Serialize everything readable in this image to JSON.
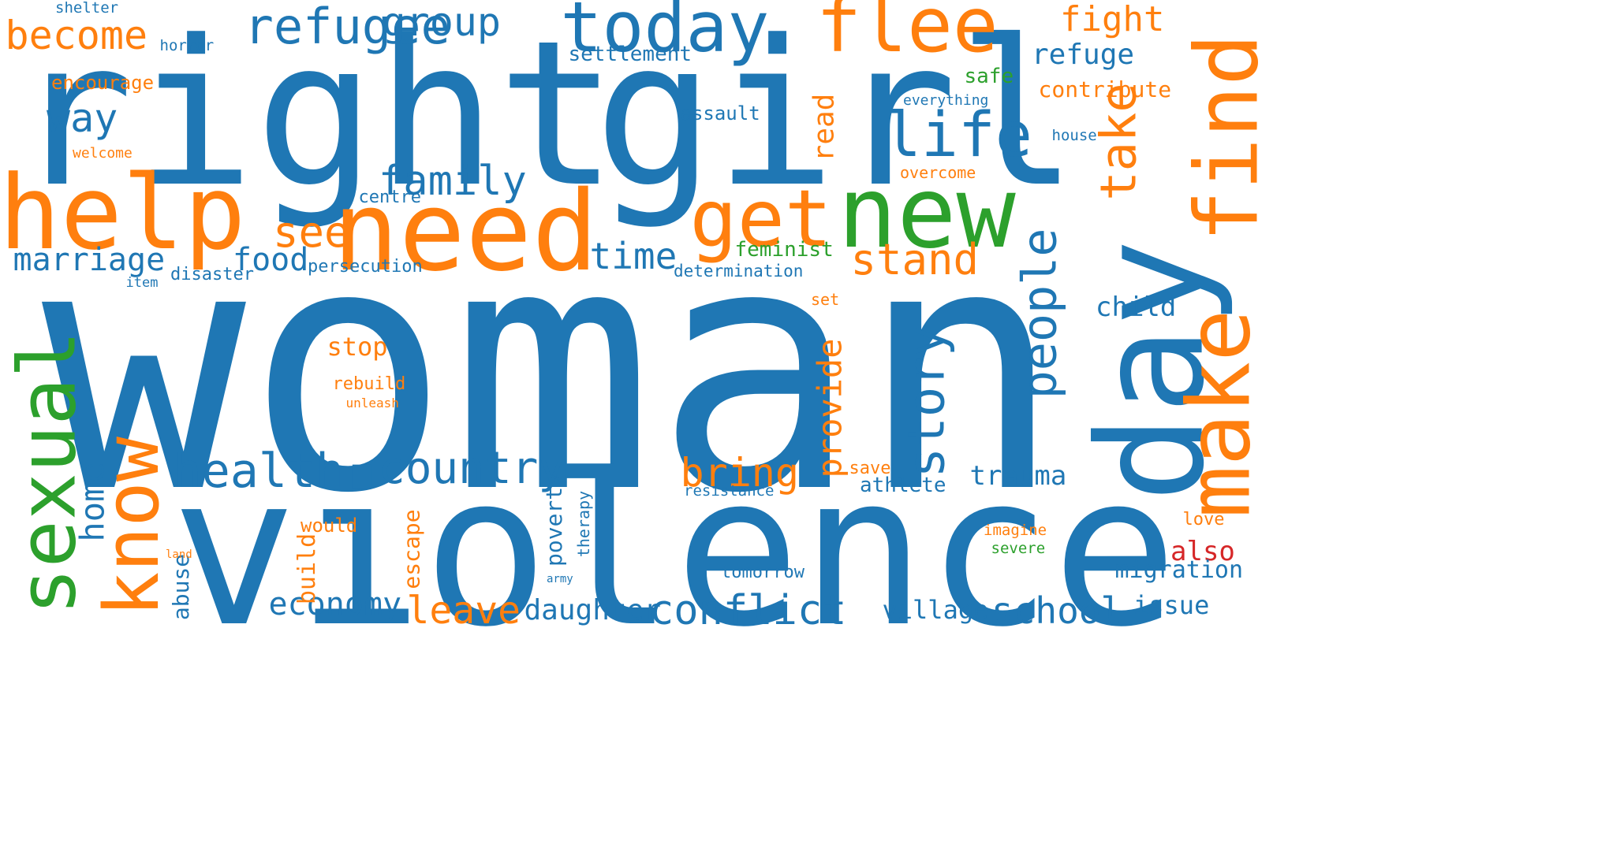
{
  "palette": {
    "blue": "#1f77b4",
    "orange": "#ff7f0e",
    "green": "#2ca02c",
    "red": "#d62728"
  },
  "words": [
    {
      "text": "woman",
      "color": "blue",
      "orientation": "horizontal"
    },
    {
      "text": "violence",
      "color": "blue",
      "orientation": "horizontal"
    },
    {
      "text": "right",
      "color": "blue",
      "orientation": "horizontal"
    },
    {
      "text": "girl",
      "color": "blue",
      "orientation": "horizontal"
    },
    {
      "text": "day",
      "color": "blue",
      "orientation": "vertical"
    },
    {
      "text": "need",
      "color": "orange",
      "orientation": "horizontal"
    },
    {
      "text": "help",
      "color": "orange",
      "orientation": "horizontal"
    },
    {
      "text": "new",
      "color": "green",
      "orientation": "horizontal"
    },
    {
      "text": "make",
      "color": "orange",
      "orientation": "vertical"
    },
    {
      "text": "find",
      "color": "orange",
      "orientation": "vertical"
    },
    {
      "text": "sexual",
      "color": "green",
      "orientation": "vertical"
    },
    {
      "text": "know",
      "color": "orange",
      "orientation": "vertical"
    },
    {
      "text": "get",
      "color": "orange",
      "orientation": "horizontal"
    },
    {
      "text": "flee",
      "color": "orange",
      "orientation": "horizontal"
    },
    {
      "text": "today",
      "color": "blue",
      "orientation": "horizontal"
    },
    {
      "text": "refugee",
      "color": "blue",
      "orientation": "horizontal"
    },
    {
      "text": "life",
      "color": "blue",
      "orientation": "horizontal"
    },
    {
      "text": "story",
      "color": "blue",
      "orientation": "vertical"
    },
    {
      "text": "take",
      "color": "orange",
      "orientation": "vertical"
    },
    {
      "text": "people",
      "color": "blue",
      "orientation": "vertical"
    },
    {
      "text": "health",
      "color": "blue",
      "orientation": "horizontal"
    },
    {
      "text": "country",
      "color": "blue",
      "orientation": "horizontal"
    },
    {
      "text": "group",
      "color": "blue",
      "orientation": "horizontal"
    },
    {
      "text": "become",
      "color": "orange",
      "orientation": "horizontal"
    },
    {
      "text": "family",
      "color": "blue",
      "orientation": "horizontal"
    },
    {
      "text": "stand",
      "color": "orange",
      "orientation": "horizontal"
    },
    {
      "text": "see",
      "color": "orange",
      "orientation": "horizontal"
    },
    {
      "text": "bring",
      "color": "orange",
      "orientation": "horizontal"
    },
    {
      "text": "conflict",
      "color": "blue",
      "orientation": "horizontal"
    },
    {
      "text": "fight",
      "color": "orange",
      "orientation": "horizontal"
    },
    {
      "text": "way",
      "color": "blue",
      "orientation": "horizontal"
    },
    {
      "text": "time",
      "color": "blue",
      "orientation": "horizontal"
    },
    {
      "text": "leave",
      "color": "orange",
      "orientation": "horizontal"
    },
    {
      "text": "school",
      "color": "blue",
      "orientation": "horizontal"
    },
    {
      "text": "marriage",
      "color": "blue",
      "orientation": "horizontal"
    },
    {
      "text": "provide",
      "color": "orange",
      "orientation": "vertical"
    },
    {
      "text": "home",
      "color": "blue",
      "orientation": "vertical"
    },
    {
      "text": "food",
      "color": "blue",
      "orientation": "horizontal"
    },
    {
      "text": "refuge",
      "color": "blue",
      "orientation": "horizontal"
    },
    {
      "text": "read",
      "color": "orange",
      "orientation": "vertical"
    },
    {
      "text": "economy",
      "color": "blue",
      "orientation": "horizontal"
    },
    {
      "text": "daughter",
      "color": "blue",
      "orientation": "horizontal"
    },
    {
      "text": "child",
      "color": "blue",
      "orientation": "horizontal"
    },
    {
      "text": "trauma",
      "color": "blue",
      "orientation": "horizontal"
    },
    {
      "text": "stop",
      "color": "orange",
      "orientation": "horizontal"
    },
    {
      "text": "also",
      "color": "red",
      "orientation": "horizontal"
    },
    {
      "text": "village",
      "color": "blue",
      "orientation": "horizontal"
    },
    {
      "text": "issue",
      "color": "blue",
      "orientation": "horizontal"
    },
    {
      "text": "build",
      "color": "orange",
      "orientation": "vertical"
    },
    {
      "text": "abuse",
      "color": "blue",
      "orientation": "vertical"
    },
    {
      "text": "poverty",
      "color": "blue",
      "orientation": "vertical"
    },
    {
      "text": "escape",
      "color": "orange",
      "orientation": "vertical"
    },
    {
      "text": "migration",
      "color": "blue",
      "orientation": "horizontal"
    },
    {
      "text": "contribute",
      "color": "orange",
      "orientation": "horizontal"
    },
    {
      "text": "athlete",
      "color": "blue",
      "orientation": "horizontal"
    },
    {
      "text": "settlement",
      "color": "blue",
      "orientation": "horizontal"
    },
    {
      "text": "feminist",
      "color": "green",
      "orientation": "horizontal"
    },
    {
      "text": "safe",
      "color": "green",
      "orientation": "horizontal"
    },
    {
      "text": "encourage",
      "color": "orange",
      "orientation": "horizontal"
    },
    {
      "text": "assault",
      "color": "blue",
      "orientation": "horizontal"
    },
    {
      "text": "would",
      "color": "orange",
      "orientation": "horizontal"
    },
    {
      "text": "rebuild",
      "color": "orange",
      "orientation": "horizontal"
    },
    {
      "text": "save",
      "color": "orange",
      "orientation": "horizontal"
    },
    {
      "text": "tomorrow",
      "color": "blue",
      "orientation": "horizontal"
    },
    {
      "text": "love",
      "color": "orange",
      "orientation": "horizontal"
    },
    {
      "text": "disaster",
      "color": "blue",
      "orientation": "horizontal"
    },
    {
      "text": "persecution",
      "color": "blue",
      "orientation": "horizontal"
    },
    {
      "text": "determination",
      "color": "blue",
      "orientation": "horizontal"
    },
    {
      "text": "centre",
      "color": "blue",
      "orientation": "horizontal"
    },
    {
      "text": "overcome",
      "color": "orange",
      "orientation": "horizontal"
    },
    {
      "text": "house",
      "color": "blue",
      "orientation": "horizontal"
    },
    {
      "text": "resistance",
      "color": "blue",
      "orientation": "horizontal"
    },
    {
      "text": "imagine",
      "color": "orange",
      "orientation": "horizontal"
    },
    {
      "text": "severe",
      "color": "green",
      "orientation": "horizontal"
    },
    {
      "text": "therapy",
      "color": "blue",
      "orientation": "vertical"
    },
    {
      "text": "shelter",
      "color": "blue",
      "orientation": "horizontal"
    },
    {
      "text": "horror",
      "color": "blue",
      "orientation": "horizontal"
    },
    {
      "text": "everything",
      "color": "blue",
      "orientation": "horizontal"
    },
    {
      "text": "set",
      "color": "orange",
      "orientation": "horizontal"
    },
    {
      "text": "welcome",
      "color": "orange",
      "orientation": "horizontal"
    },
    {
      "text": "item",
      "color": "blue",
      "orientation": "horizontal"
    },
    {
      "text": "unleash",
      "color": "orange",
      "orientation": "horizontal"
    },
    {
      "text": "land",
      "color": "orange",
      "orientation": "horizontal"
    },
    {
      "text": "army",
      "color": "blue",
      "orientation": "horizontal"
    }
  ]
}
